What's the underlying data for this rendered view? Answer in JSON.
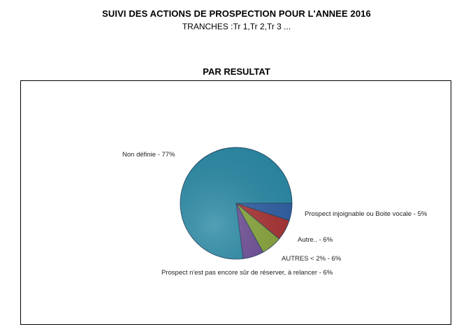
{
  "header": {
    "title": "SUIVI DES ACTIONS DE PROSPECTION POUR L'ANNEE 2016",
    "subtitle": "TRANCHES :Tr 1,Tr 2,Tr 3 ..."
  },
  "chart_data": {
    "type": "pie",
    "title": "PAR RESULTAT",
    "slices": [
      {
        "label": "Non définie - 77%",
        "value": 77,
        "color": "#2a8aa5"
      },
      {
        "label": "Prospect injoignable ou Boite vocale - 5%",
        "value": 5,
        "color": "#2f5fa4"
      },
      {
        "label": "Autre.. - 6%",
        "value": 6,
        "color": "#a83232"
      },
      {
        "label": "AUTRES < 2%  - 6%",
        "value": 6,
        "color": "#86a33a"
      },
      {
        "label": "Prospect n'est pas encore sûr de réserver, à relancer - 6%",
        "value": 6,
        "color": "#6c4c94"
      }
    ]
  }
}
